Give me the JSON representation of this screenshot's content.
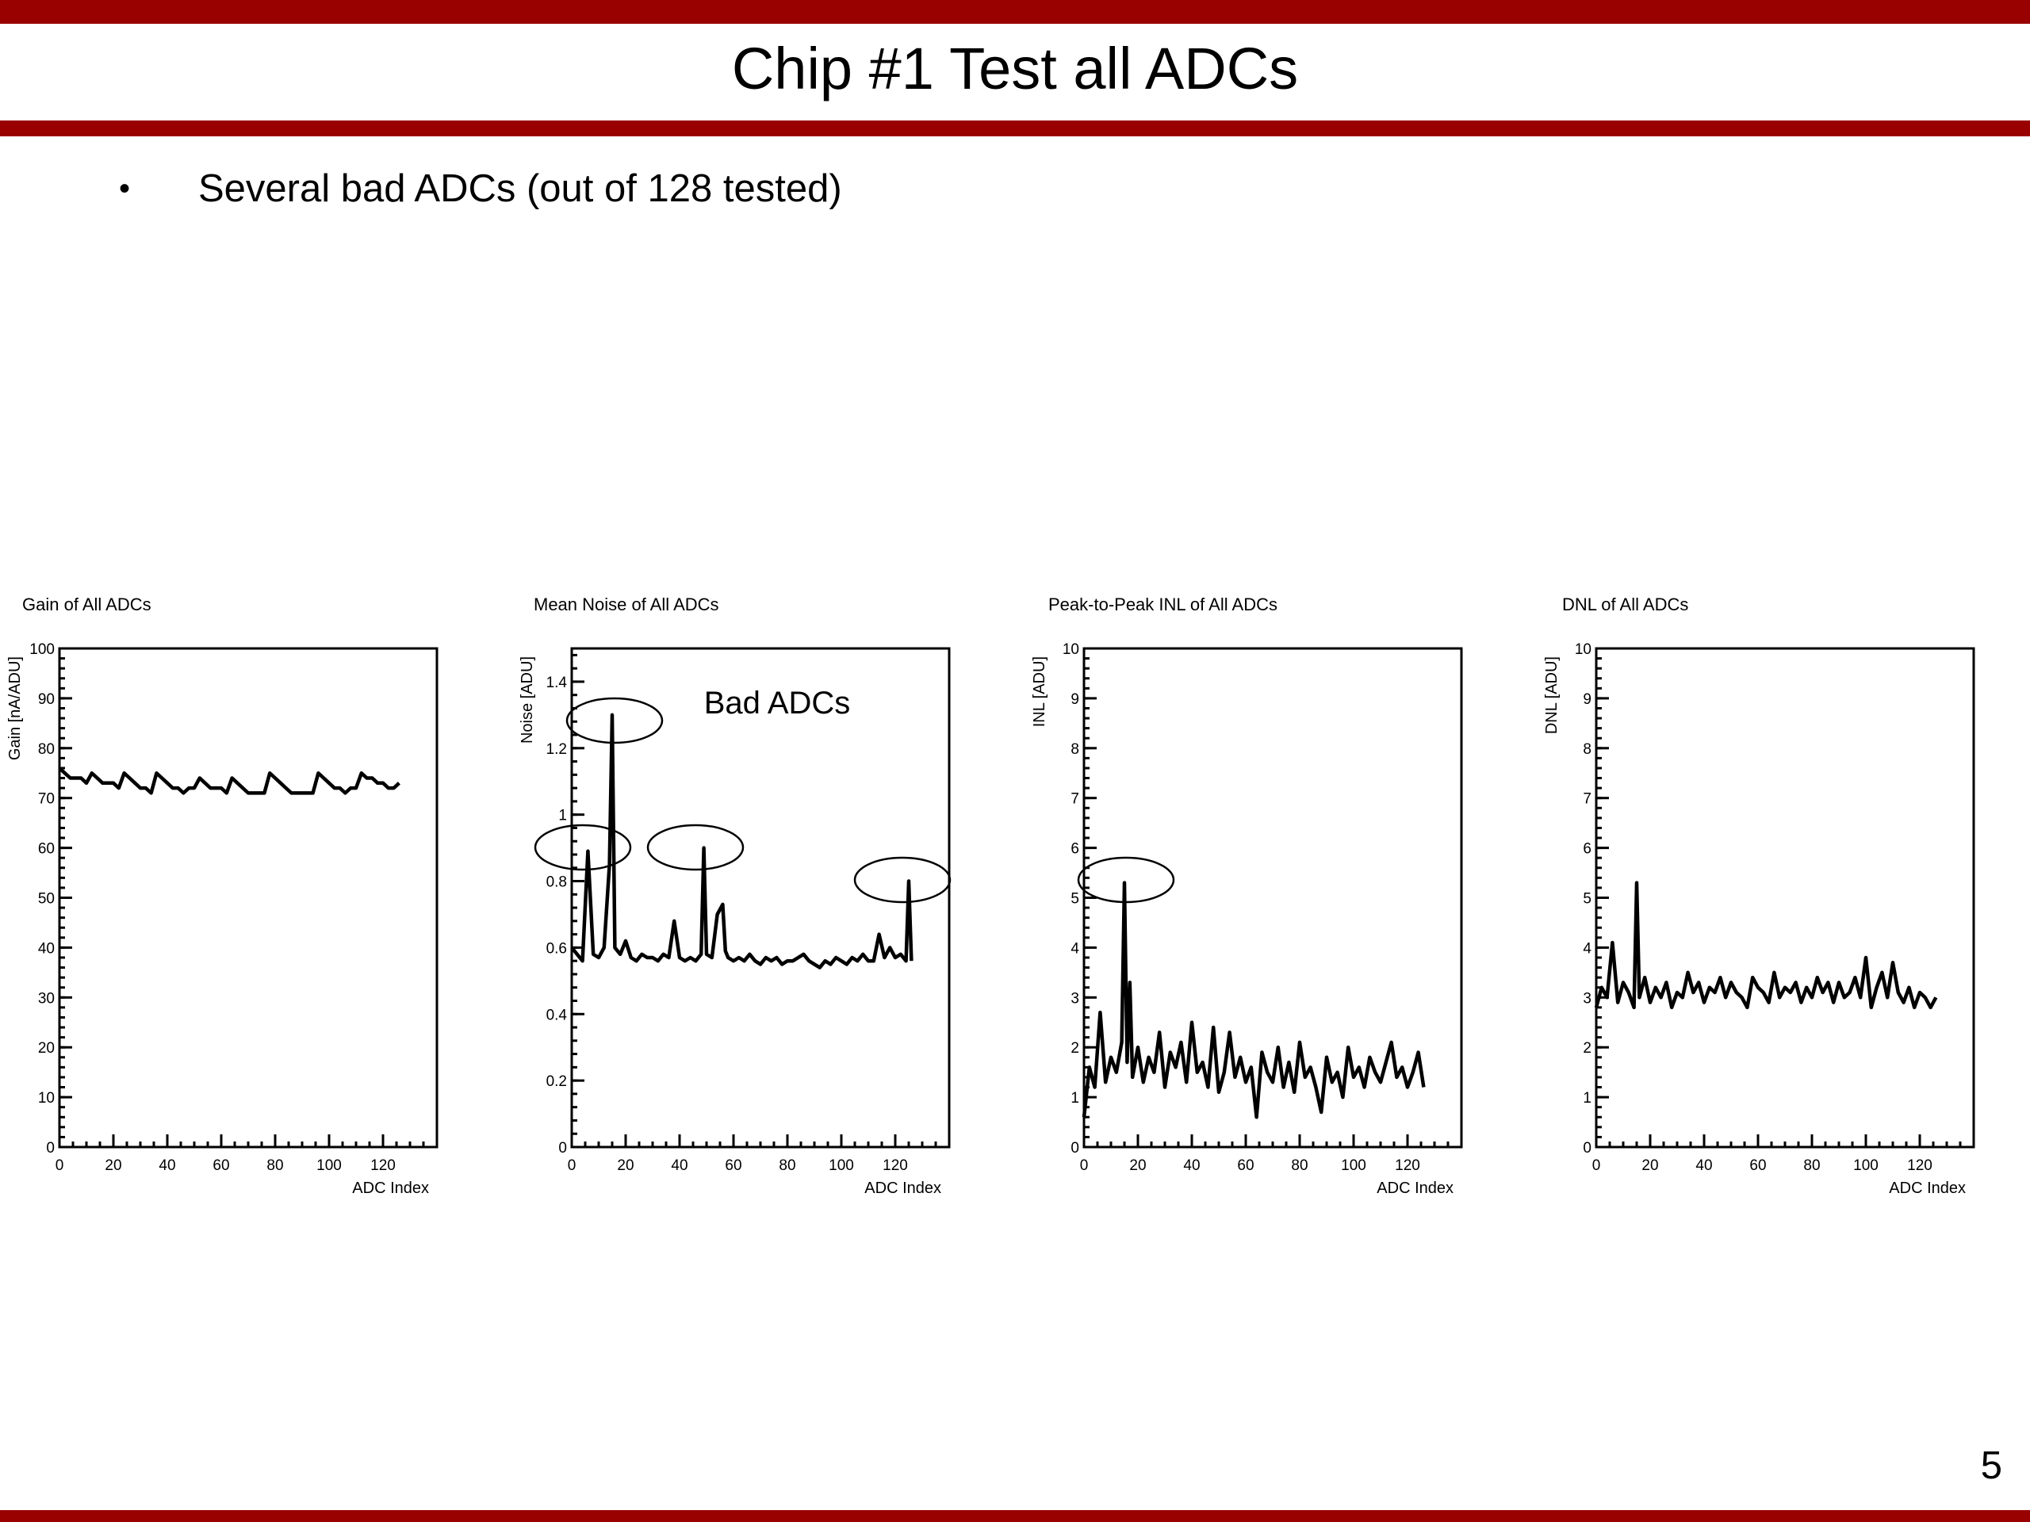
{
  "slide": {
    "title": "Chip #1 Test all ADCs",
    "bullet": "Several bad ADCs (out of 128 tested)",
    "page_number": "5",
    "accent_color": "#990000"
  },
  "chart_data": [
    {
      "type": "line",
      "title": "Gain of All ADCs",
      "xlabel": "ADC Index",
      "ylabel": "Gain [nA/ADU]",
      "xlim": [
        0,
        140
      ],
      "ylim": [
        0,
        100
      ],
      "xticks": [
        0,
        20,
        40,
        60,
        80,
        100,
        120
      ],
      "yticks": [
        0,
        10,
        20,
        30,
        40,
        50,
        60,
        70,
        80,
        90,
        100
      ],
      "grid": false,
      "x": [
        0,
        2,
        4,
        6,
        8,
        10,
        12,
        14,
        16,
        18,
        20,
        22,
        24,
        26,
        28,
        30,
        32,
        34,
        36,
        38,
        40,
        42,
        44,
        46,
        48,
        50,
        52,
        54,
        56,
        58,
        60,
        62,
        64,
        66,
        68,
        70,
        72,
        74,
        76,
        78,
        80,
        82,
        84,
        86,
        88,
        90,
        92,
        94,
        96,
        98,
        100,
        102,
        104,
        106,
        108,
        110,
        112,
        114,
        116,
        118,
        120,
        122,
        124,
        126
      ],
      "series": [
        {
          "values": [
            76,
            75,
            74,
            74,
            74,
            73,
            75,
            74,
            73,
            73,
            73,
            72,
            75,
            74,
            73,
            72,
            72,
            71,
            75,
            74,
            73,
            72,
            72,
            71,
            72,
            72,
            74,
            73,
            72,
            72,
            72,
            71,
            74,
            73,
            72,
            71,
            71,
            71,
            71,
            75,
            74,
            73,
            72,
            71,
            71,
            71,
            71,
            71,
            75,
            74,
            73,
            72,
            72,
            71,
            72,
            72,
            75,
            74,
            74,
            73,
            73,
            72,
            72,
            73
          ]
        }
      ]
    },
    {
      "type": "line",
      "title": "Mean Noise of All ADCs",
      "xlabel": "ADC Index",
      "ylabel": "Noise [ADU]",
      "xlim": [
        0,
        140
      ],
      "ylim": [
        0,
        1.5
      ],
      "xticks": [
        0,
        20,
        40,
        60,
        80,
        100,
        120
      ],
      "yticks": [
        0,
        0.2,
        0.4,
        0.6,
        0.8,
        1,
        1.2,
        1.4
      ],
      "ytick_labels": [
        "0",
        "0.2",
        "0.4",
        "0.6",
        "0.8",
        "1",
        "1.2",
        "1.4"
      ],
      "grid": false,
      "x": [
        0,
        2,
        4,
        6,
        8,
        10,
        12,
        14,
        15,
        16,
        18,
        20,
        22,
        24,
        26,
        28,
        30,
        32,
        34,
        36,
        38,
        40,
        42,
        44,
        46,
        48,
        49,
        50,
        52,
        54,
        56,
        57,
        58,
        60,
        62,
        64,
        66,
        68,
        70,
        72,
        74,
        76,
        78,
        80,
        82,
        84,
        86,
        88,
        90,
        92,
        94,
        96,
        98,
        100,
        102,
        104,
        106,
        108,
        110,
        112,
        114,
        116,
        118,
        120,
        122,
        124,
        125,
        126
      ],
      "series": [
        {
          "values": [
            0.6,
            0.58,
            0.56,
            0.89,
            0.58,
            0.57,
            0.6,
            0.85,
            1.3,
            0.6,
            0.58,
            0.62,
            0.57,
            0.56,
            0.58,
            0.57,
            0.57,
            0.56,
            0.58,
            0.57,
            0.68,
            0.57,
            0.56,
            0.57,
            0.56,
            0.58,
            0.9,
            0.58,
            0.57,
            0.7,
            0.73,
            0.59,
            0.57,
            0.56,
            0.57,
            0.56,
            0.58,
            0.56,
            0.55,
            0.57,
            0.56,
            0.57,
            0.55,
            0.56,
            0.56,
            0.57,
            0.58,
            0.56,
            0.55,
            0.54,
            0.56,
            0.55,
            0.57,
            0.56,
            0.55,
            0.57,
            0.56,
            0.58,
            0.56,
            0.56,
            0.64,
            0.57,
            0.6,
            0.57,
            0.58,
            0.56,
            0.8,
            0.56
          ]
        }
      ],
      "annotations": [
        {
          "text": "Bad ADCs"
        }
      ],
      "highlighted_points": [
        {
          "x": 6,
          "y": 0.89
        },
        {
          "x": 15,
          "y": 1.3
        },
        {
          "x": 49,
          "y": 0.9
        },
        {
          "x": 125,
          "y": 0.8
        }
      ]
    },
    {
      "type": "line",
      "title": "Peak-to-Peak INL of All ADCs",
      "xlabel": "ADC Index",
      "ylabel": "INL [ADU]",
      "xlim": [
        0,
        140
      ],
      "ylim": [
        0,
        10
      ],
      "xticks": [
        0,
        20,
        40,
        60,
        80,
        100,
        120
      ],
      "yticks": [
        0,
        1,
        2,
        3,
        4,
        5,
        6,
        7,
        8,
        9,
        10
      ],
      "grid": false,
      "x": [
        0,
        2,
        4,
        6,
        8,
        10,
        12,
        14,
        15,
        16,
        17,
        18,
        20,
        22,
        24,
        26,
        28,
        30,
        32,
        34,
        36,
        38,
        40,
        42,
        44,
        46,
        48,
        50,
        52,
        54,
        56,
        58,
        60,
        62,
        64,
        66,
        68,
        70,
        72,
        74,
        76,
        78,
        80,
        82,
        84,
        86,
        88,
        90,
        92,
        94,
        96,
        98,
        100,
        102,
        104,
        106,
        108,
        110,
        112,
        114,
        116,
        118,
        120,
        122,
        124,
        126
      ],
      "series": [
        {
          "values": [
            0.6,
            1.6,
            1.2,
            2.7,
            1.3,
            1.8,
            1.5,
            2.1,
            5.3,
            1.7,
            3.3,
            1.4,
            2.0,
            1.3,
            1.8,
            1.5,
            2.3,
            1.2,
            1.9,
            1.6,
            2.1,
            1.3,
            2.5,
            1.5,
            1.7,
            1.2,
            2.4,
            1.1,
            1.5,
            2.3,
            1.4,
            1.8,
            1.3,
            1.6,
            0.6,
            1.9,
            1.5,
            1.3,
            2.0,
            1.2,
            1.7,
            1.1,
            2.1,
            1.4,
            1.6,
            1.2,
            0.7,
            1.8,
            1.3,
            1.5,
            1.0,
            2.0,
            1.4,
            1.6,
            1.2,
            1.8,
            1.5,
            1.3,
            1.7,
            2.1,
            1.4,
            1.6,
            1.2,
            1.5,
            1.9,
            1.2
          ]
        }
      ],
      "highlighted_points": [
        {
          "x": 15,
          "y": 5.3
        }
      ]
    },
    {
      "type": "line",
      "title": "DNL of All ADCs",
      "xlabel": "ADC Index",
      "ylabel": "DNL [ADU]",
      "xlim": [
        0,
        140
      ],
      "ylim": [
        0,
        10
      ],
      "xticks": [
        0,
        20,
        40,
        60,
        80,
        100,
        120
      ],
      "yticks": [
        0,
        1,
        2,
        3,
        4,
        5,
        6,
        7,
        8,
        9,
        10
      ],
      "grid": false,
      "x": [
        0,
        2,
        4,
        6,
        8,
        10,
        12,
        14,
        15,
        16,
        18,
        20,
        22,
        24,
        26,
        28,
        30,
        32,
        34,
        36,
        38,
        40,
        42,
        44,
        46,
        48,
        50,
        52,
        54,
        56,
        58,
        60,
        62,
        64,
        66,
        68,
        70,
        72,
        74,
        76,
        78,
        80,
        82,
        84,
        86,
        88,
        90,
        92,
        94,
        96,
        98,
        100,
        102,
        104,
        106,
        108,
        110,
        112,
        114,
        116,
        118,
        120,
        122,
        124,
        126
      ],
      "series": [
        {
          "values": [
            2.8,
            3.2,
            3.0,
            4.1,
            2.9,
            3.3,
            3.1,
            2.8,
            5.3,
            3.0,
            3.4,
            2.9,
            3.2,
            3.0,
            3.3,
            2.8,
            3.1,
            3.0,
            3.5,
            3.1,
            3.3,
            2.9,
            3.2,
            3.1,
            3.4,
            3.0,
            3.3,
            3.1,
            3.0,
            2.8,
            3.4,
            3.2,
            3.1,
            2.9,
            3.5,
            3.0,
            3.2,
            3.1,
            3.3,
            2.9,
            3.2,
            3.0,
            3.4,
            3.1,
            3.3,
            2.9,
            3.3,
            3.0,
            3.1,
            3.4,
            3.0,
            3.8,
            2.8,
            3.2,
            3.5,
            3.0,
            3.7,
            3.1,
            2.9,
            3.2,
            2.8,
            3.1,
            3.0,
            2.8,
            3.0
          ]
        }
      ]
    }
  ]
}
